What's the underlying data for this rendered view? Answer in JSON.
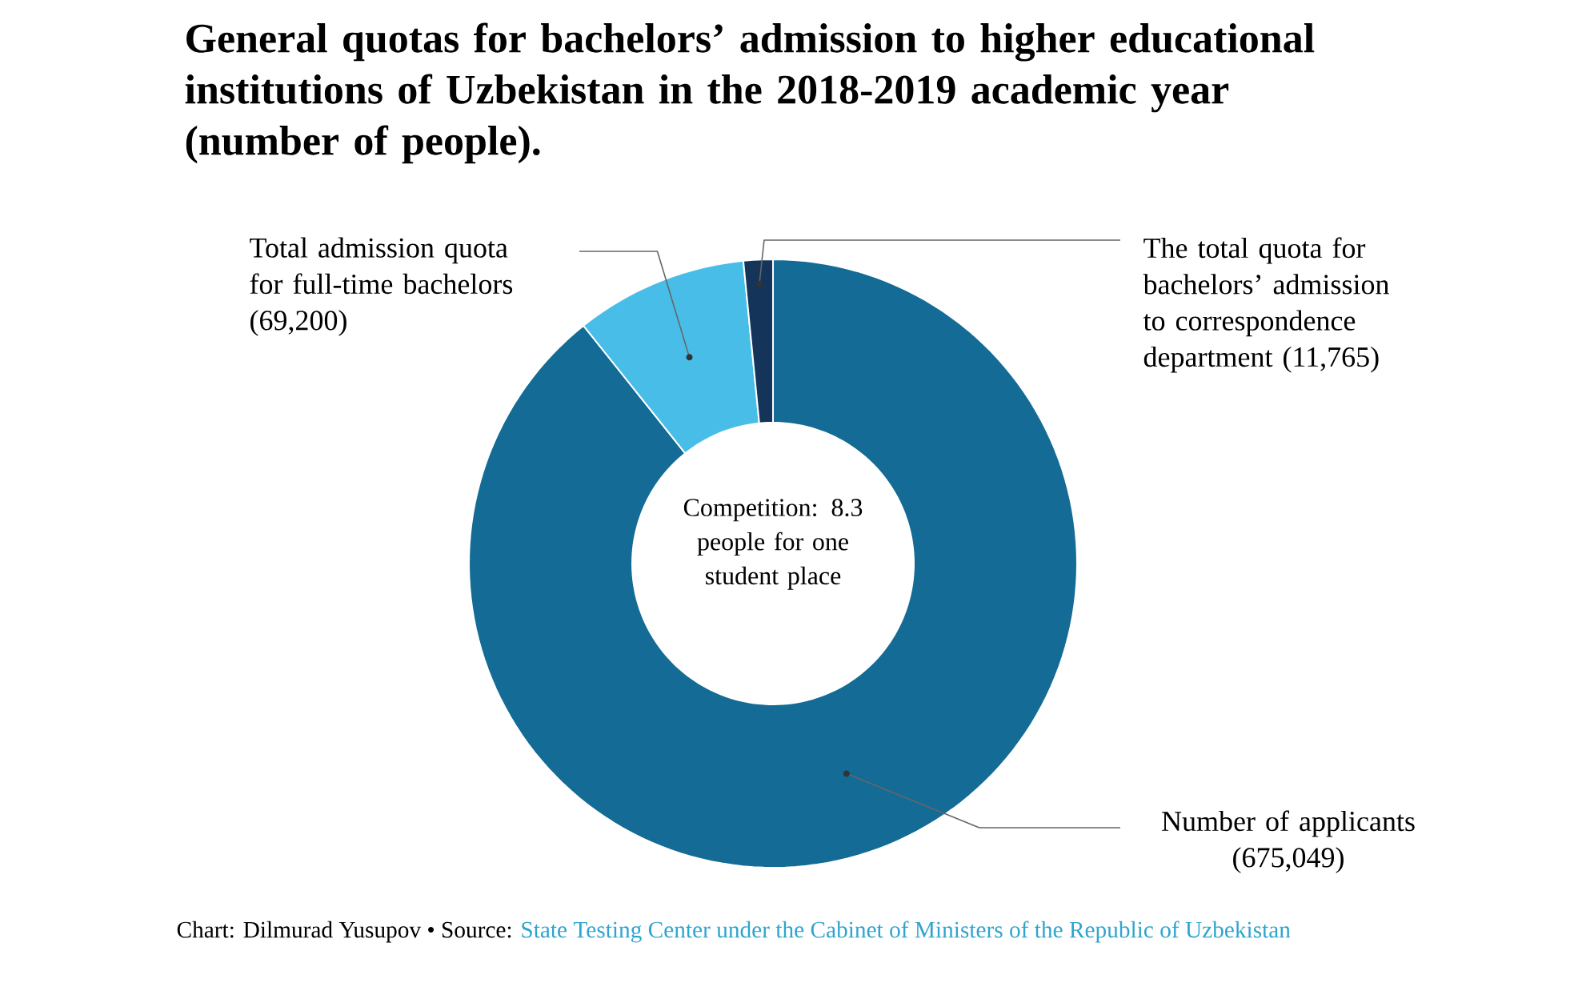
{
  "chart_data": {
    "type": "donut",
    "title": "General quotas for bachelors’ admission to higher educational institutions of Uzbekistan in the 2018-2019 academic year (number of people).",
    "categories": [
      "Number of applicants",
      "Total admission quota for full-time bachelors",
      "The total quota for bachelors’ admission to correspondence department"
    ],
    "values": [
      675049,
      69200,
      11765
    ],
    "value_labels": [
      "(675,049)",
      "(69,200)",
      "(11,765)"
    ],
    "colors": [
      "#136b96",
      "#47bde8",
      "#15345a"
    ],
    "annotations": [
      "Competition: 8.3 people for one student place",
      "Chart: Dilmurad Yusupov • Source:",
      "State Testing Center under the Cabinet of Ministers of the Republic of Uzbekistan"
    ]
  }
}
